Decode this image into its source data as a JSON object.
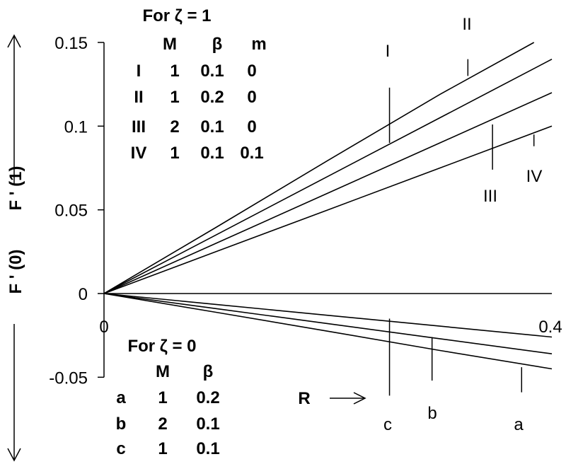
{
  "chart_data": {
    "type": "line",
    "xlabel": "R",
    "ylabel_upper": "F ' (1)",
    "ylabel_lower": "F ' (0)",
    "xlim": [
      0,
      0.4
    ],
    "ylim": [
      -0.05,
      0.15
    ],
    "x_tick_labels": [
      "0",
      "0.4"
    ],
    "y_tick_labels": [
      "0.15",
      "0.1",
      "0.05",
      "0",
      "-0.05"
    ],
    "upper_legend": {
      "title": "For ζ = 1",
      "headers": [
        "M",
        "β",
        "m"
      ],
      "rows": [
        {
          "label": "I",
          "M": "1",
          "beta": "0.1",
          "m": "0"
        },
        {
          "label": "II",
          "M": "1",
          "beta": "0.2",
          "m": "0"
        },
        {
          "label": "III",
          "M": "2",
          "beta": "0.1",
          "m": "0"
        },
        {
          "label": "IV",
          "M": "1",
          "beta": "0.1",
          "m": "0.1"
        }
      ]
    },
    "lower_legend": {
      "title": "For ζ = 0",
      "headers": [
        "M",
        "β"
      ],
      "rows": [
        {
          "label": "a",
          "M": "1",
          "beta": "0.2"
        },
        {
          "label": "b",
          "M": "2",
          "beta": "0.1"
        },
        {
          "label": "c",
          "M": "1",
          "beta": "0.1"
        }
      ]
    },
    "series": [
      {
        "name": "I",
        "x": [
          0,
          0.1,
          0.2,
          0.3,
          0.384
        ],
        "y": [
          0,
          0.0395,
          0.0795,
          0.119,
          0.15
        ]
      },
      {
        "name": "II",
        "x": [
          0,
          0.1,
          0.2,
          0.3,
          0.4
        ],
        "y": [
          0,
          0.035,
          0.07,
          0.105,
          0.14
        ]
      },
      {
        "name": "III",
        "x": [
          0,
          0.1,
          0.2,
          0.3,
          0.4
        ],
        "y": [
          0,
          0.03,
          0.06,
          0.09,
          0.12
        ]
      },
      {
        "name": "IV",
        "x": [
          0,
          0.1,
          0.2,
          0.3,
          0.4
        ],
        "y": [
          0,
          0.025,
          0.05,
          0.075,
          0.1
        ]
      },
      {
        "name": "a",
        "x": [
          0,
          0.1,
          0.2,
          0.3,
          0.4
        ],
        "y": [
          0,
          -0.0065,
          -0.013,
          -0.0195,
          -0.026
        ]
      },
      {
        "name": "b",
        "x": [
          0,
          0.1,
          0.2,
          0.3,
          0.4
        ],
        "y": [
          0,
          -0.009,
          -0.018,
          -0.027,
          -0.036
        ]
      },
      {
        "name": "c",
        "x": [
          0,
          0.1,
          0.2,
          0.3,
          0.4
        ],
        "y": [
          0,
          -0.0112,
          -0.0225,
          -0.034,
          -0.045
        ]
      }
    ],
    "curve_labels": [
      {
        "text": "I",
        "marker_x": 0.255,
        "marker_y": [
          0.09,
          0.123
        ]
      },
      {
        "text": "II",
        "marker_x": 0.325,
        "marker_y": [
          0.13,
          0.14
        ]
      },
      {
        "text": "III",
        "marker_x": 0.347,
        "marker_y": [
          0.074,
          0.101
        ]
      },
      {
        "text": "IV",
        "marker_x": 0.384,
        "marker_y": [
          0.088,
          0.095
        ]
      },
      {
        "text": "c",
        "marker_x": 0.255,
        "marker_y": [
          -0.015,
          -0.061
        ]
      },
      {
        "text": "b",
        "marker_x": 0.293,
        "marker_y": [
          -0.026,
          -0.052
        ]
      },
      {
        "text": "a",
        "marker_x": 0.373,
        "marker_y": [
          -0.044,
          -0.059
        ]
      }
    ],
    "grid": false
  }
}
